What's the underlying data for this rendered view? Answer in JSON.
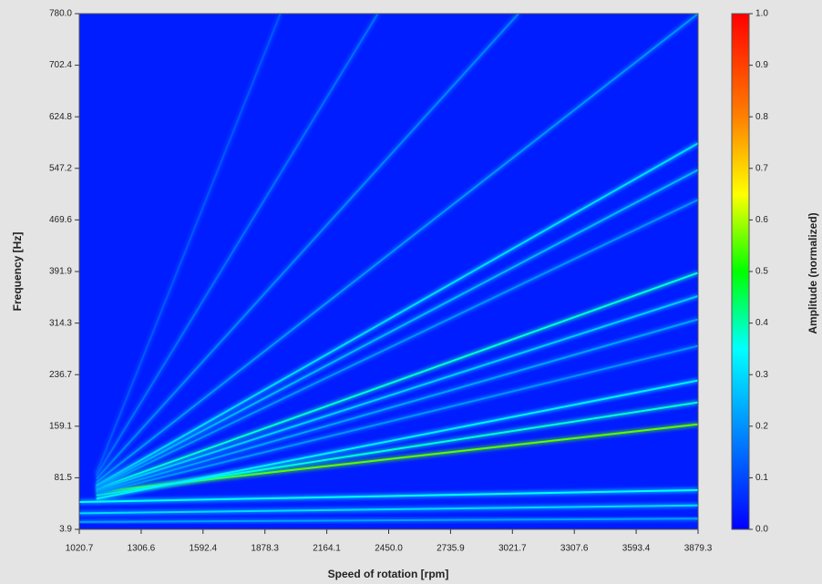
{
  "chart_data": {
    "type": "heatmap",
    "x_label": "Speed of rotation [rpm]",
    "y_label": "Frequency [Hz]",
    "colorbar_label": "Amplitude (normalized)",
    "colormap": "jet",
    "xlim": [
      1020.7,
      3879.3
    ],
    "xticks": [
      1020.7,
      1306.6,
      1592.4,
      1878.3,
      2164.1,
      {
        "value": 2450,
        "label": "2450.0"
      },
      2735.9,
      3021.7,
      3307.6,
      3593.4,
      3879.3
    ],
    "ylim": [
      3.9,
      780
    ],
    "yticks": [
      3.9,
      81.5,
      159.1,
      236.7,
      314.3,
      391.9,
      469.6,
      547.2,
      624.8,
      702.4,
      {
        "value": 780,
        "label": "780.0"
      }
    ],
    "zlim": [
      0,
      1
    ],
    "zticks": [
      {
        "value": 0,
        "label": "0.0"
      },
      0.1,
      0.2,
      0.3,
      0.4,
      0.5,
      0.6,
      0.7,
      0.8,
      0.9,
      {
        "value": 1,
        "label": "1.0"
      }
    ],
    "ridges": [
      {
        "x": [
          1100,
          3879.3
        ],
        "y": [
          60,
          162
        ],
        "amplitude": 0.55
      },
      {
        "x": [
          1100,
          3879.3
        ],
        "y": [
          55,
          195
        ],
        "amplitude": 0.38
      },
      {
        "x": [
          1100,
          3879.3
        ],
        "y": [
          50,
          228
        ],
        "amplitude": 0.33
      },
      {
        "x": [
          1020.7,
          3879.3
        ],
        "y": [
          45,
          63
        ],
        "amplitude": 0.35
      },
      {
        "x": [
          1020.7,
          3879.3
        ],
        "y": [
          28,
          40
        ],
        "amplitude": 0.3
      },
      {
        "x": [
          1020.7,
          3879.3
        ],
        "y": [
          15,
          20
        ],
        "amplitude": 0.22
      },
      {
        "x": [
          1100,
          3879.3
        ],
        "y": [
          65,
          390
        ],
        "amplitude": 0.38
      },
      {
        "x": [
          1100,
          3879.3
        ],
        "y": [
          63,
          355
        ],
        "amplitude": 0.28
      },
      {
        "x": [
          1100,
          3879.3
        ],
        "y": [
          60,
          320
        ],
        "amplitude": 0.22
      },
      {
        "x": [
          1100,
          3879.3
        ],
        "y": [
          58,
          280
        ],
        "amplitude": 0.2
      },
      {
        "x": [
          1100,
          3879.3
        ],
        "y": [
          70,
          585
        ],
        "amplitude": 0.3
      },
      {
        "x": [
          1100,
          3879.3
        ],
        "y": [
          68,
          545
        ],
        "amplitude": 0.25
      },
      {
        "x": [
          1100,
          3879.3
        ],
        "y": [
          66,
          500
        ],
        "amplitude": 0.2
      },
      {
        "x": [
          1100,
          3879.3
        ],
        "y": [
          75,
          780
        ],
        "amplitude": 0.2
      },
      {
        "x": [
          1100,
          3050
        ],
        "y": [
          80,
          780
        ],
        "amplitude": 0.18
      },
      {
        "x": [
          1100,
          2400
        ],
        "y": [
          85,
          780
        ],
        "amplitude": 0.15
      },
      {
        "x": [
          1100,
          1950
        ],
        "y": [
          88,
          780
        ],
        "amplitude": 0.12
      }
    ]
  }
}
